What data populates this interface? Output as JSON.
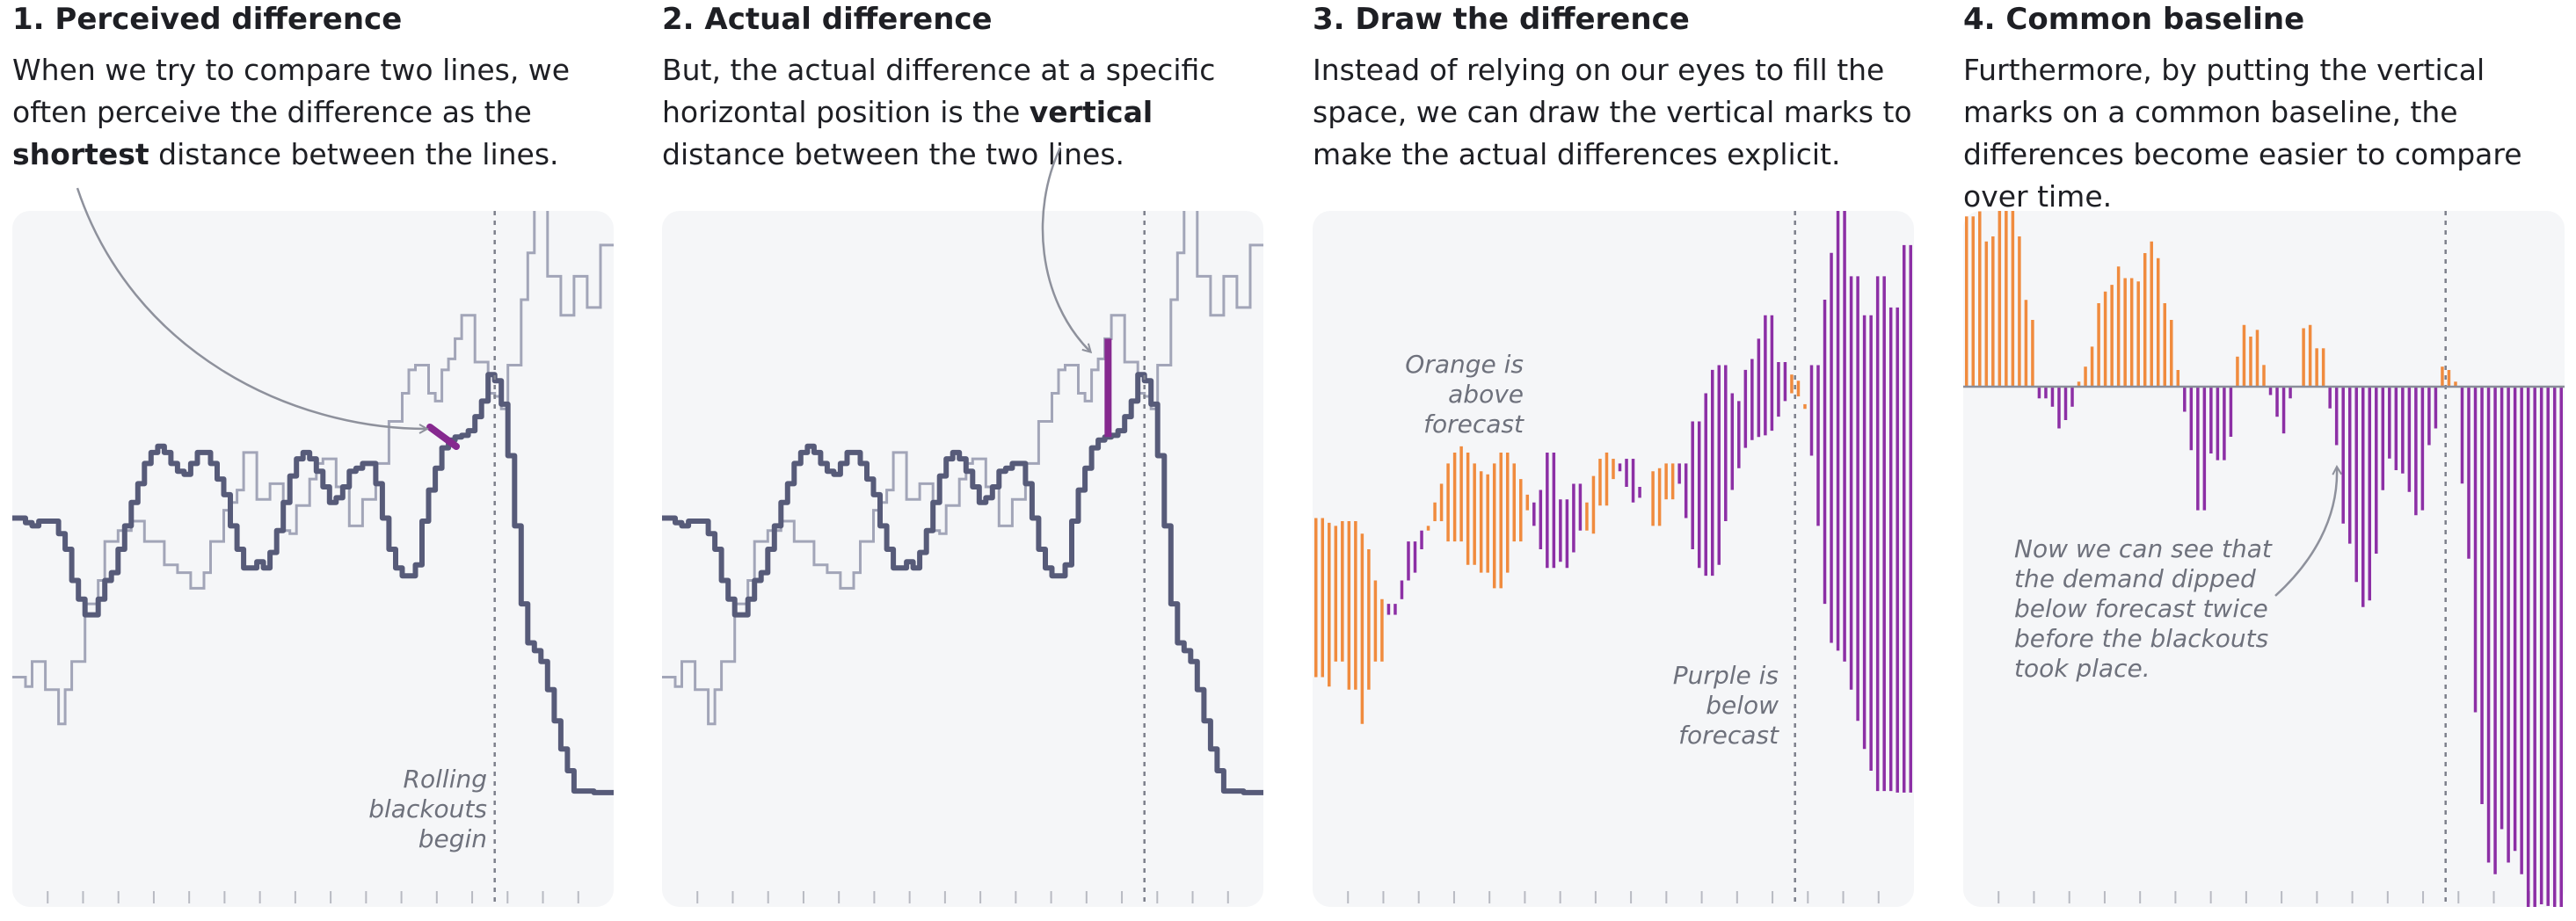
{
  "panels": [
    {
      "title": "1. Perceived difference",
      "text": [
        {
          "t": "When we try to compare two lines, we often perceive the difference as the "
        },
        {
          "t": "shortest",
          "b": true
        },
        {
          "t": " distance between the lines."
        }
      ],
      "mode": "perceived",
      "annotation": "Rolling blackouts begin"
    },
    {
      "title": "2. Actual difference",
      "text": [
        {
          "t": "But, the actual difference at a specific horizontal position is the "
        },
        {
          "t": "vertical",
          "b": true
        },
        {
          "t": " distance between the two lines."
        }
      ],
      "mode": "actual"
    },
    {
      "title": "3. Draw the difference",
      "text": [
        {
          "t": "Instead of relying on our eyes to fill the space, we can draw the vertical marks to make the actual differences explicit."
        }
      ],
      "mode": "draw",
      "annotation_above": "Orange is above forecast",
      "annotation_below": "Purple is below forecast"
    },
    {
      "title": "4. Common baseline",
      "text": [
        {
          "t": "Furthermore, by putting the vertical marks on a common baseline, the differences become easier to compare over time."
        }
      ],
      "mode": "baseline",
      "annotation": "Now we can see that the demand dipped below forecast twice before the blackouts took place."
    }
  ],
  "chart_data": {
    "type": "line",
    "title": "",
    "xlabel": "",
    "ylabel": "",
    "n_steps": 91,
    "vertical_marker_step": 73,
    "x_ticks": 16,
    "grid": false,
    "series": [
      {
        "role": "actual",
        "color": "#575b79",
        "values": [
          220,
          220,
          217,
          215,
          218,
          218,
          218,
          210,
          200,
          180,
          168,
          158,
          158,
          168,
          180,
          185,
          200,
          215,
          230,
          242,
          255,
          262,
          266,
          262,
          255,
          250,
          248,
          255,
          262,
          262,
          255,
          245,
          235,
          215,
          200,
          188,
          188,
          192,
          188,
          198,
          212,
          230,
          247,
          258,
          262,
          258,
          250,
          240,
          230,
          233,
          240,
          250,
          252,
          255,
          255,
          242,
          220,
          200,
          188,
          183,
          183,
          190,
          218,
          238,
          252,
          265,
          270,
          272,
          273,
          276,
          285,
          295,
          312,
          308,
          293,
          260,
          215,
          165,
          140,
          135,
          128,
          110,
          90,
          72,
          58,
          45,
          45,
          45,
          44,
          44,
          44
        ]
      },
      {
        "role": "forecast",
        "color": "#a2a5b8",
        "values": [
          118,
          118,
          112,
          128,
          128,
          110,
          110,
          88,
          110,
          128,
          128,
          165,
          165,
          180,
          205,
          205,
          212,
          212,
          218,
          218,
          205,
          205,
          205,
          190,
          190,
          185,
          185,
          175,
          175,
          185,
          205,
          205,
          225,
          230,
          238,
          262,
          262,
          232,
          232,
          242,
          242,
          212,
          210,
          228,
          228,
          245,
          255,
          258,
          258,
          240,
          240,
          215,
          215,
          232,
          232,
          255,
          255,
          282,
          282,
          300,
          315,
          318,
          318,
          300,
          295,
          315,
          322,
          335,
          350,
          350,
          320,
          320,
          300,
          298,
          290,
          318,
          318,
          360,
          390,
          420,
          420,
          375,
          375,
          350,
          350,
          375,
          375,
          355,
          355,
          395,
          395
        ]
      }
    ],
    "y_range": [
      0,
      400
    ]
  },
  "colors": {
    "actual": "#575b79",
    "forecast": "#a2a5b8",
    "above": "#f08b3e",
    "below": "#8c2fa5",
    "highlight": "#86298f",
    "marker": "#7d808c",
    "arrow": "#8e919c",
    "tick": "#b8bac2",
    "panel_bg": "#f5f6f8"
  }
}
